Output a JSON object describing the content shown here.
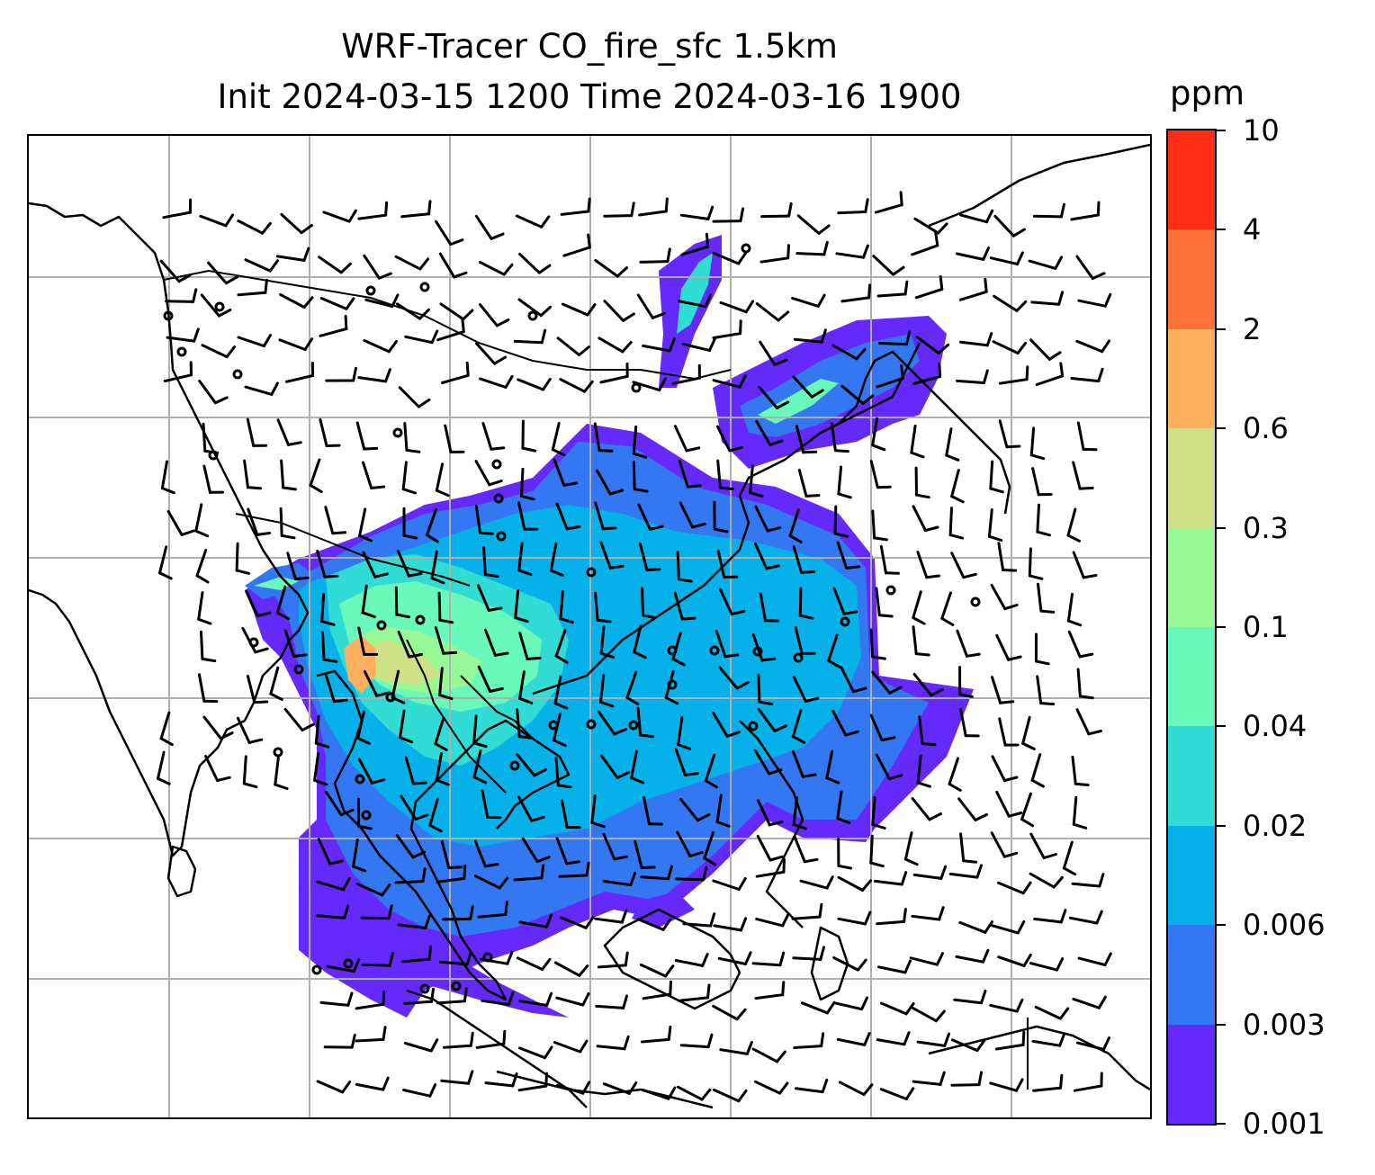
{
  "title": {
    "line1": "WRF-Tracer CO_fire_sfc 1.5km",
    "line2": "Init 2024-03-15 1200 Time 2024-03-16 1900"
  },
  "colorbar": {
    "unit": "ppm",
    "levels": [
      "0.001",
      "0.003",
      "0.006",
      "0.02",
      "0.04",
      "0.1",
      "0.3",
      "0.6",
      "2",
      "4",
      "10"
    ],
    "colors": [
      "#6529fb",
      "#3477f2",
      "#06b1e9",
      "#31dcd4",
      "#68f9bb",
      "#98f896",
      "#cfe087",
      "#ffaf5d",
      "#ff7239",
      "#ff2c16"
    ]
  },
  "map": {
    "gridlines": "on",
    "coastline_color": "#000000",
    "gridline_color": "#b0b0b0",
    "layers": [
      "gridlines",
      "coastlines",
      "country-borders",
      "co-fire-concentration",
      "wind-barbs",
      "calm-wind-circles"
    ]
  }
}
